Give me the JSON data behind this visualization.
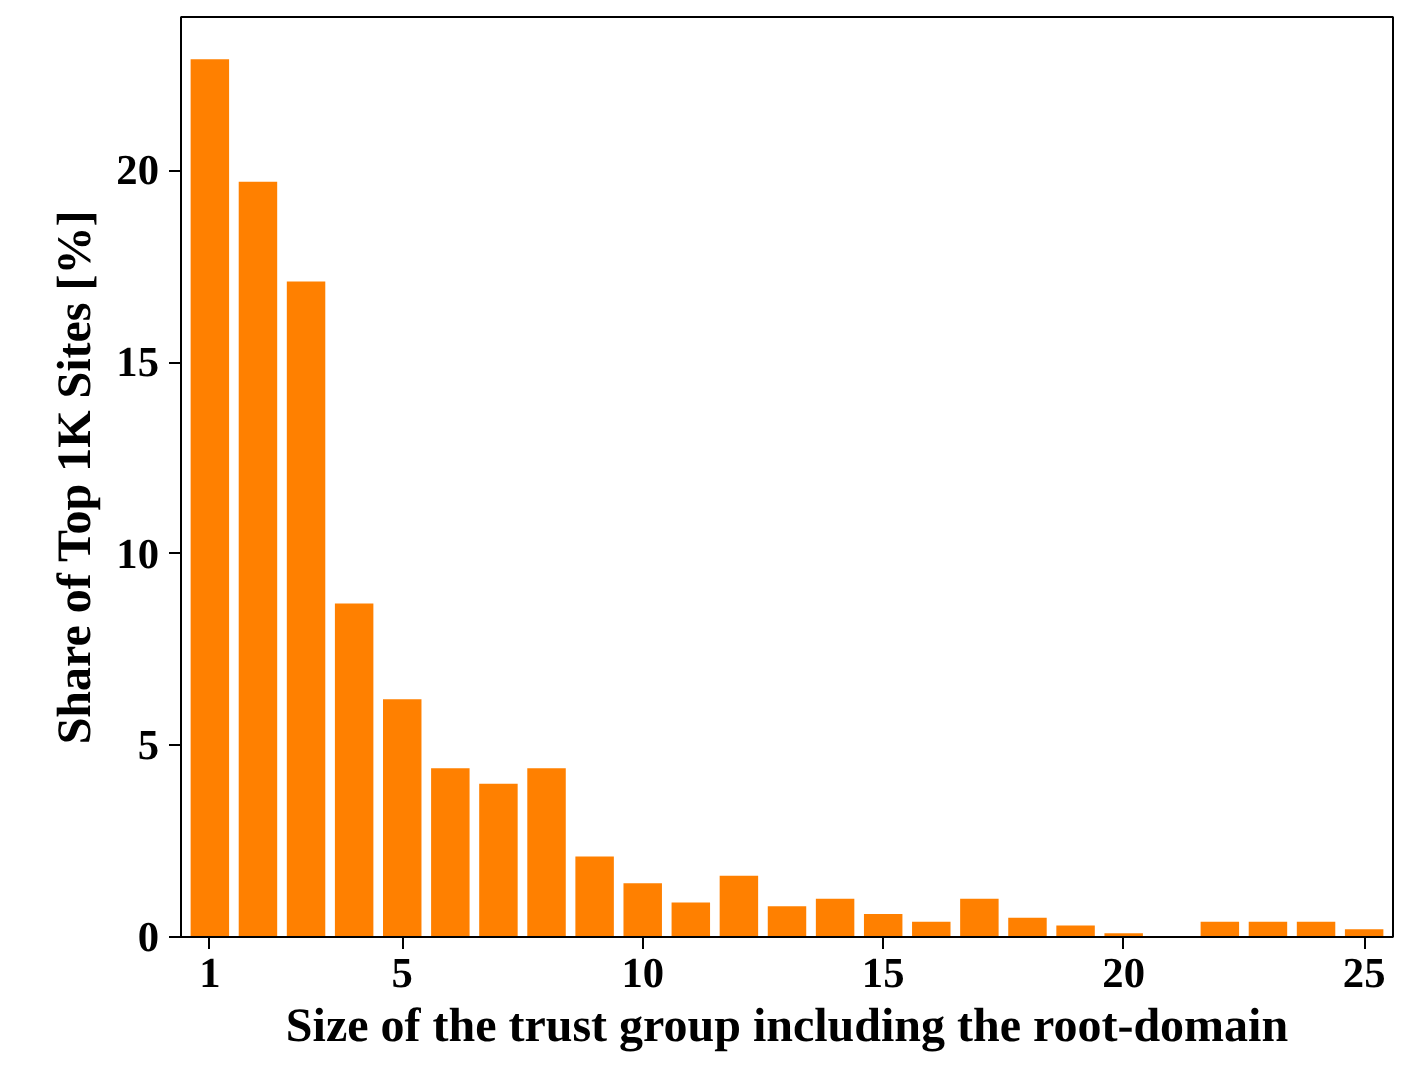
{
  "chart_data": {
    "type": "bar",
    "xlabel": "Size of the trust group including the root-domain",
    "ylabel": "Share of Top 1K Sites [%]",
    "x": [
      1,
      2,
      3,
      4,
      5,
      6,
      7,
      8,
      9,
      10,
      11,
      12,
      13,
      14,
      15,
      16,
      17,
      18,
      19,
      20,
      21,
      22,
      23,
      24,
      25
    ],
    "values": [
      22.9,
      19.7,
      17.1,
      8.7,
      6.2,
      4.4,
      4.0,
      4.4,
      2.1,
      1.4,
      0.9,
      1.6,
      0.8,
      1.0,
      0.6,
      0.4,
      1.0,
      0.5,
      0.3,
      0.1,
      0,
      0.4,
      0.4,
      0.4,
      0.2
    ],
    "color": "#ff8000",
    "xlim": [
      0.4,
      25.6
    ],
    "ylim": [
      0,
      24
    ],
    "xticks": [
      1,
      5,
      10,
      15,
      20,
      25
    ],
    "yticks": [
      0,
      5,
      10,
      15,
      20
    ],
    "grid": false
  }
}
